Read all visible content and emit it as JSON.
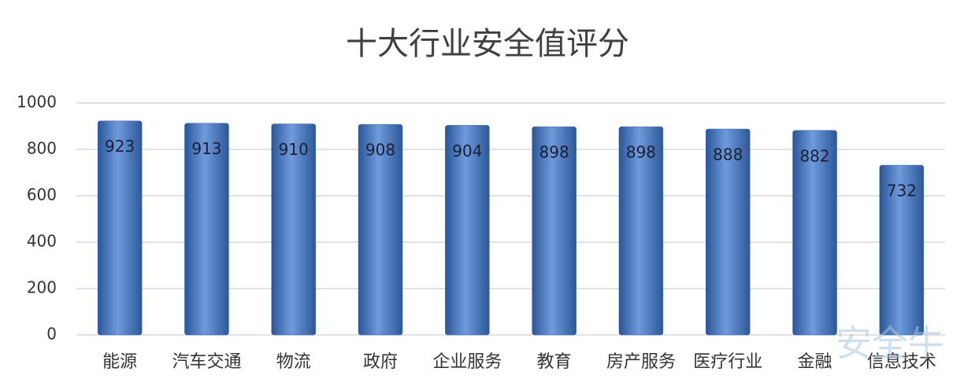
{
  "chart_data": {
    "type": "bar",
    "title": "十大行业安全值评分",
    "categories": [
      "能源",
      "汽车交通",
      "物流",
      "政府",
      "企业服务",
      "教育",
      "房产服务",
      "医疗行业",
      "金融",
      "信息技术"
    ],
    "values": [
      923,
      913,
      910,
      908,
      904,
      898,
      898,
      888,
      882,
      732
    ],
    "ylim": [
      0,
      1000
    ],
    "yticks": [
      0,
      200,
      400,
      600,
      800,
      1000
    ],
    "grid": true,
    "color": "#3f6fb5",
    "watermark": "安全牛"
  }
}
